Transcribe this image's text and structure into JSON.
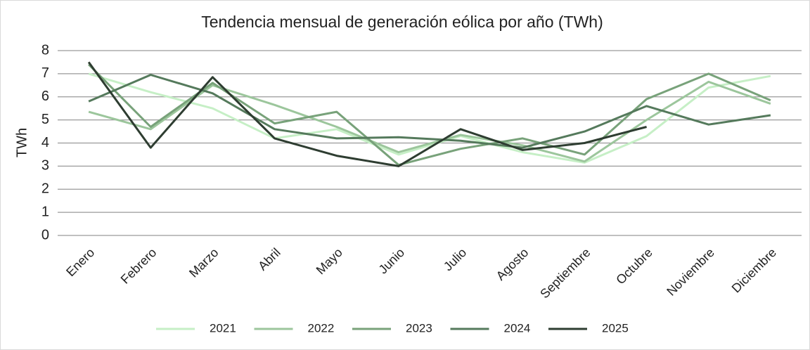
{
  "chart_data": {
    "type": "line",
    "title": "Tendencia mensual de generación eólica por año (TWh)",
    "y_label": "TWh",
    "categories": [
      "Enero",
      "Febrero",
      "Marzo",
      "Abril",
      "Mayo",
      "Junio",
      "Julio",
      "Agosto",
      "Septiembre",
      "Octubre",
      "Noviembre",
      "Diciembre"
    ],
    "series": [
      {
        "name": "2021",
        "color": "#c6efc6",
        "values": [
          7.0,
          6.2,
          5.5,
          4.2,
          4.6,
          3.5,
          4.3,
          3.6,
          3.15,
          4.3,
          6.4,
          6.9
        ]
      },
      {
        "name": "2022",
        "color": "#9cc69c",
        "values": [
          5.35,
          4.6,
          6.5,
          5.65,
          4.7,
          3.6,
          4.35,
          3.9,
          3.2,
          5.0,
          6.65,
          5.7
        ]
      },
      {
        "name": "2023",
        "color": "#78a27a",
        "values": [
          7.4,
          4.7,
          6.6,
          4.85,
          5.35,
          3.05,
          3.75,
          4.2,
          3.5,
          5.9,
          7.0,
          5.85
        ]
      },
      {
        "name": "2024",
        "color": "#557a5c",
        "values": [
          5.8,
          6.95,
          6.15,
          4.6,
          4.2,
          4.25,
          4.1,
          3.8,
          4.5,
          5.6,
          4.8,
          5.2
        ]
      },
      {
        "name": "2025",
        "color": "#2e3d31",
        "values": [
          7.5,
          3.8,
          6.85,
          4.2,
          3.45,
          3.0,
          4.6,
          3.7,
          4.0,
          4.7,
          null,
          null
        ]
      }
    ],
    "ylim": [
      0,
      8
    ],
    "yticks": [
      0,
      1,
      2,
      3,
      4,
      5,
      6,
      7,
      8
    ],
    "grid": true,
    "legend": "bottom"
  }
}
